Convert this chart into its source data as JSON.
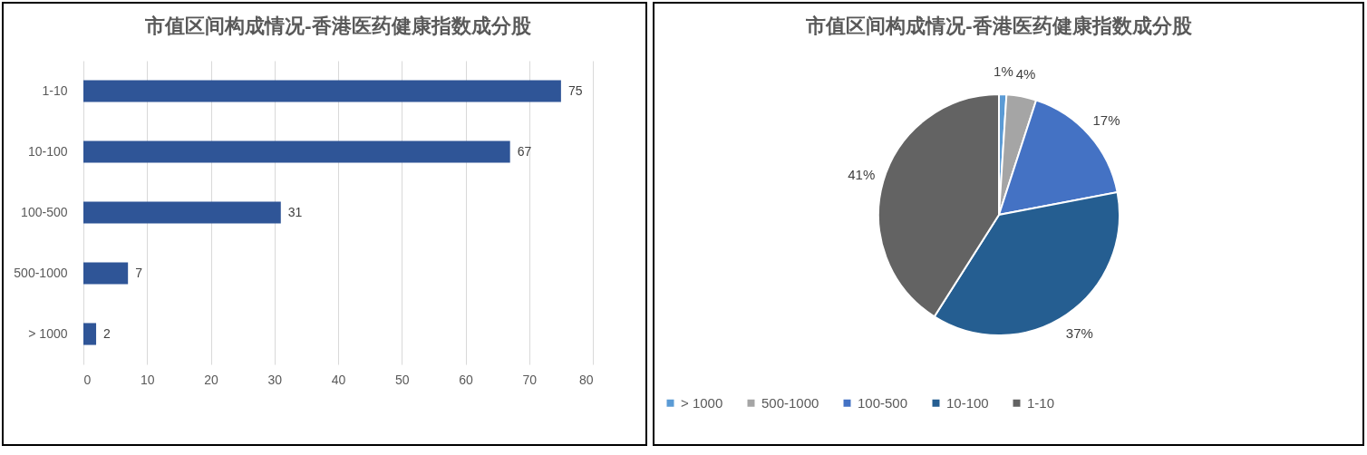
{
  "chart_data": [
    {
      "type": "bar",
      "orientation": "horizontal",
      "title": "市值区间构成情况-香港医药健康指数成分股",
      "categories": [
        "1-10",
        "10-100",
        "100-500",
        "500-1000",
        "> 1000"
      ],
      "values": [
        75,
        67,
        31,
        7,
        2
      ],
      "color": "#2f5597",
      "xlim": [
        0,
        80
      ],
      "xticks": [
        0,
        10,
        20,
        30,
        40,
        50,
        60,
        70,
        80
      ],
      "grid": "x",
      "data_labels": true
    },
    {
      "type": "pie",
      "title": "市值区间构成情况-香港医药健康指数成分股",
      "categories": [
        "> 1000",
        "500-1000",
        "100-500",
        "10-100",
        "1-10"
      ],
      "values": [
        1,
        4,
        17,
        37,
        41
      ],
      "colors": [
        "#5b9bd5",
        "#a5a5a5",
        "#4472c4",
        "#255e91",
        "#636363"
      ],
      "value_labels": [
        "1%",
        "4%",
        "17%",
        "37%",
        "41%"
      ],
      "legend": "bottom"
    }
  ]
}
